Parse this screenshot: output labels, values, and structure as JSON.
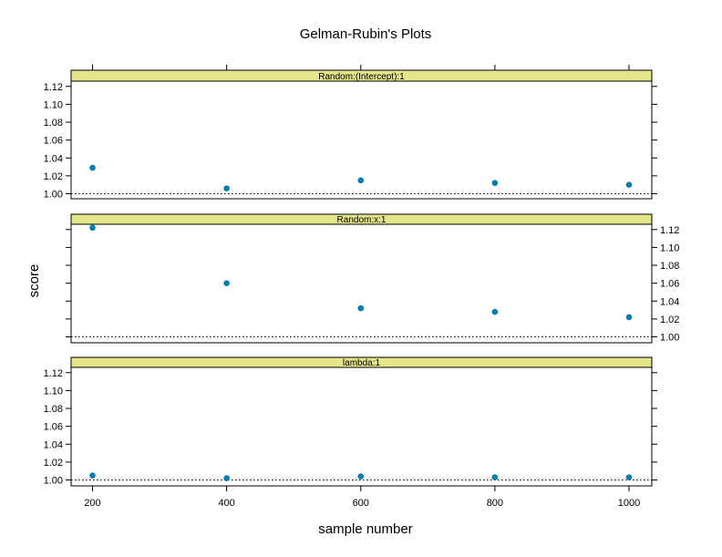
{
  "chart_data": {
    "type": "scatter",
    "title": "Gelman-Rubin's Plots",
    "xlabel": "sample number",
    "ylabel": "score",
    "x_ticks": [
      200,
      400,
      600,
      800,
      1000
    ],
    "ylim": [
      0.99,
      1.13
    ],
    "y_ticks": [
      1.0,
      1.02,
      1.04,
      1.06,
      1.08,
      1.1,
      1.12
    ],
    "y_tick_labels": [
      "1.00",
      "1.02",
      "1.04",
      "1.06",
      "1.08",
      "1.10",
      "1.12"
    ],
    "reference_line": 1.0,
    "point_color": "#0080b0",
    "strip_color": "#e5e58a",
    "panels": [
      {
        "strip": "Random:(Intercept):1",
        "axis_side": "left",
        "points": [
          {
            "x": 200,
            "y": 1.029
          },
          {
            "x": 400,
            "y": 1.006
          },
          {
            "x": 600,
            "y": 1.015
          },
          {
            "x": 800,
            "y": 1.012
          },
          {
            "x": 1000,
            "y": 1.01
          }
        ]
      },
      {
        "strip": "Random:x:1",
        "axis_side": "right",
        "points": [
          {
            "x": 200,
            "y": 1.122
          },
          {
            "x": 400,
            "y": 1.06
          },
          {
            "x": 600,
            "y": 1.032
          },
          {
            "x": 800,
            "y": 1.028
          },
          {
            "x": 1000,
            "y": 1.022
          }
        ]
      },
      {
        "strip": "lambda:1",
        "axis_side": "left",
        "points": [
          {
            "x": 200,
            "y": 1.005
          },
          {
            "x": 400,
            "y": 1.002
          },
          {
            "x": 600,
            "y": 1.004
          },
          {
            "x": 800,
            "y": 1.003
          },
          {
            "x": 1000,
            "y": 1.003
          }
        ]
      }
    ]
  }
}
